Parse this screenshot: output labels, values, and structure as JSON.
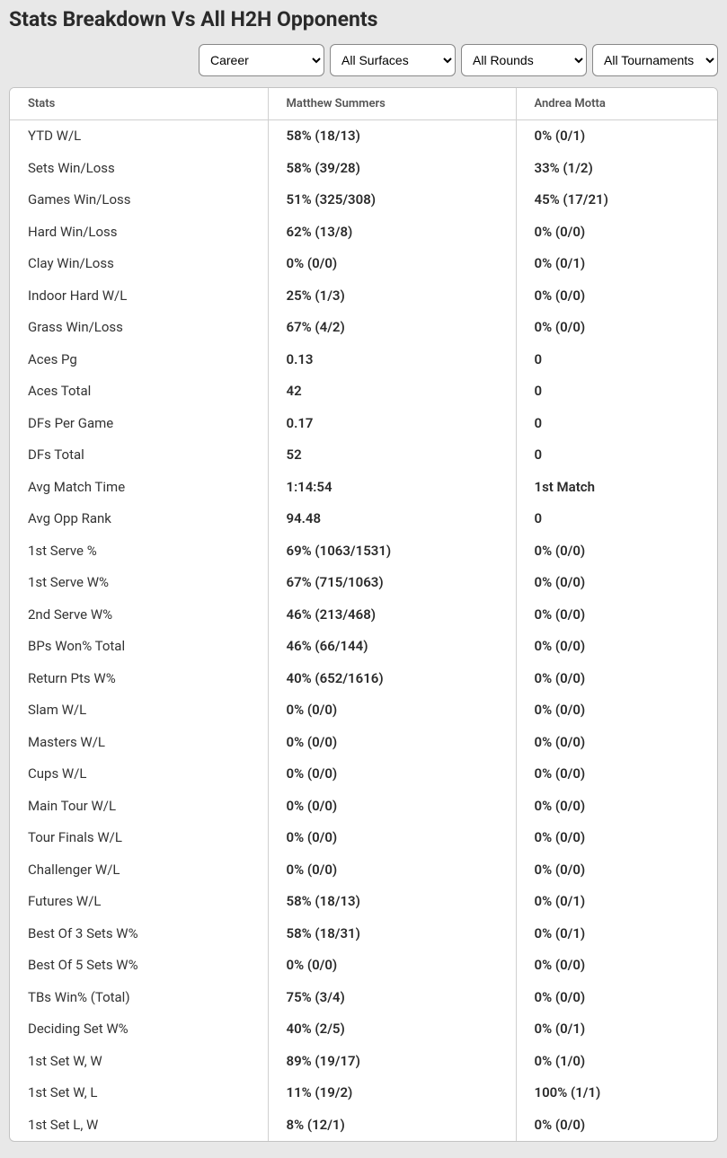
{
  "title": "Stats Breakdown Vs All H2H Opponents",
  "filters": {
    "period": {
      "selected": "Career",
      "options": [
        "Career"
      ]
    },
    "surface": {
      "selected": "All Surfaces",
      "options": [
        "All Surfaces"
      ]
    },
    "round": {
      "selected": "All Rounds",
      "options": [
        "All Rounds"
      ]
    },
    "tournament": {
      "selected": "All Tournaments",
      "options": [
        "All Tournaments"
      ]
    }
  },
  "table": {
    "columns": [
      "Stats",
      "Matthew Summers",
      "Andrea Motta"
    ],
    "rows": [
      [
        "YTD W/L",
        "58% (18/13)",
        "0% (0/1)"
      ],
      [
        "Sets Win/Loss",
        "58% (39/28)",
        "33% (1/2)"
      ],
      [
        "Games Win/Loss",
        "51% (325/308)",
        "45% (17/21)"
      ],
      [
        "Hard Win/Loss",
        "62% (13/8)",
        "0% (0/0)"
      ],
      [
        "Clay Win/Loss",
        "0% (0/0)",
        "0% (0/1)"
      ],
      [
        "Indoor Hard W/L",
        "25% (1/3)",
        "0% (0/0)"
      ],
      [
        "Grass Win/Loss",
        "67% (4/2)",
        "0% (0/0)"
      ],
      [
        "Aces Pg",
        "0.13",
        "0"
      ],
      [
        "Aces Total",
        "42",
        "0"
      ],
      [
        "DFs Per Game",
        "0.17",
        "0"
      ],
      [
        "DFs Total",
        "52",
        "0"
      ],
      [
        "Avg Match Time",
        "1:14:54",
        "1st Match"
      ],
      [
        "Avg Opp Rank",
        "94.48",
        "0"
      ],
      [
        "1st Serve %",
        "69% (1063/1531)",
        "0% (0/0)"
      ],
      [
        "1st Serve W%",
        "67% (715/1063)",
        "0% (0/0)"
      ],
      [
        "2nd Serve W%",
        "46% (213/468)",
        "0% (0/0)"
      ],
      [
        "BPs Won% Total",
        "46% (66/144)",
        "0% (0/0)"
      ],
      [
        "Return Pts W%",
        "40% (652/1616)",
        "0% (0/0)"
      ],
      [
        "Slam W/L",
        "0% (0/0)",
        "0% (0/0)"
      ],
      [
        "Masters W/L",
        "0% (0/0)",
        "0% (0/0)"
      ],
      [
        "Cups W/L",
        "0% (0/0)",
        "0% (0/0)"
      ],
      [
        "Main Tour W/L",
        "0% (0/0)",
        "0% (0/0)"
      ],
      [
        "Tour Finals W/L",
        "0% (0/0)",
        "0% (0/0)"
      ],
      [
        "Challenger W/L",
        "0% (0/0)",
        "0% (0/0)"
      ],
      [
        "Futures W/L",
        "58% (18/13)",
        "0% (0/1)"
      ],
      [
        "Best Of 3 Sets W%",
        "58% (18/31)",
        "0% (0/1)"
      ],
      [
        "Best Of 5 Sets W%",
        "0% (0/0)",
        "0% (0/0)"
      ],
      [
        "TBs Win% (Total)",
        "75% (3/4)",
        "0% (0/0)"
      ],
      [
        "Deciding Set W%",
        "40% (2/5)",
        "0% (0/1)"
      ],
      [
        "1st Set W, W",
        "89% (19/17)",
        "0% (1/0)"
      ],
      [
        "1st Set W, L",
        "11% (19/2)",
        "100% (1/1)"
      ],
      [
        "1st Set L, W",
        "8% (12/1)",
        "0% (0/0)"
      ]
    ]
  }
}
